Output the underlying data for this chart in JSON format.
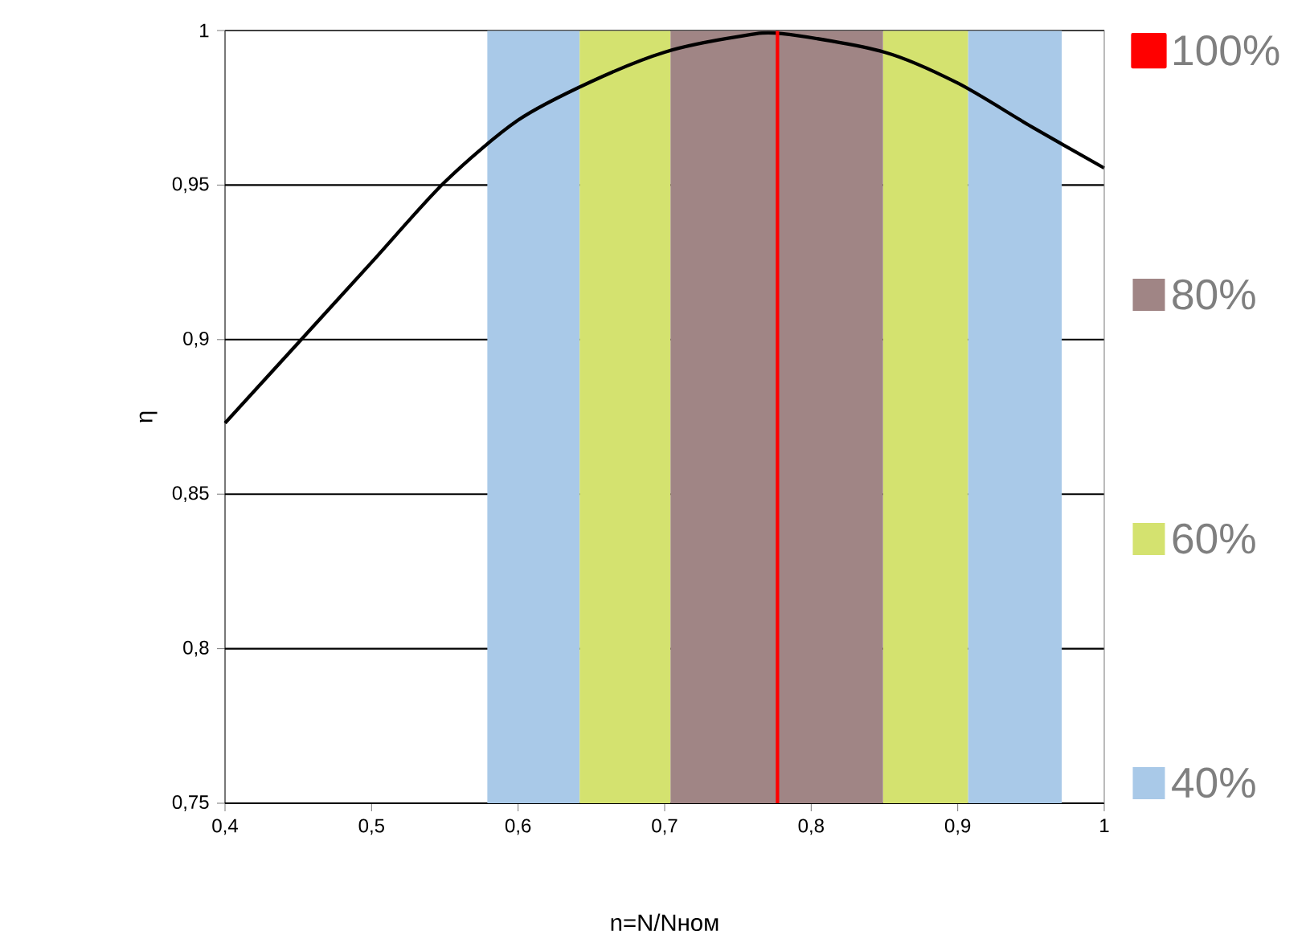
{
  "chart_data": {
    "type": "line",
    "xlabel": "n=N/Nном",
    "ylabel": "η",
    "x": [
      0.4,
      0.452,
      0.5,
      0.55,
      0.6,
      0.65,
      0.7,
      0.75,
      0.78,
      0.85,
      0.9,
      0.95,
      1.0
    ],
    "series": [
      {
        "name": "40%",
        "type": "area",
        "color": "#a9c9e8",
        "x": [
          0.579,
          0.642,
          null,
          0.907,
          0.971
        ],
        "values": [
          1,
          1,
          null,
          1,
          1
        ]
      },
      {
        "name": "60%",
        "type": "area",
        "color": "#d4e26f",
        "x": [
          0.642,
          0.704,
          null,
          0.849,
          0.907
        ],
        "values": [
          1,
          1,
          null,
          1,
          1
        ]
      },
      {
        "name": "80%",
        "type": "area",
        "color": "#a08585",
        "x": [
          0.704,
          0.849
        ],
        "values": [
          1,
          1
        ]
      },
      {
        "color": "#000000",
        "values": [
          0.873,
          0.9,
          0.925,
          0.951,
          0.971,
          0.9835,
          0.993,
          0.998,
          0.999,
          0.993,
          0.983,
          0.969,
          0.9555
        ]
      },
      {
        "name": "100%",
        "color": "#ff0000",
        "x": [
          0.777,
          0.777
        ],
        "values": [
          0.75,
          1
        ]
      }
    ],
    "xlim": [
      0.4,
      1
    ],
    "ylim": [
      0.75,
      1
    ],
    "xticks": [
      {
        "value": 0.4,
        "label": "0,4"
      },
      {
        "value": 0.5,
        "label": "0,5"
      },
      {
        "value": 0.6,
        "label": "0,6"
      },
      {
        "value": 0.7,
        "label": "0,7"
      },
      {
        "value": 0.8,
        "label": "0,8"
      },
      {
        "value": 0.9,
        "label": "0,9"
      },
      {
        "value": 1,
        "label": "1"
      }
    ],
    "yticks": [
      {
        "value": 0.75,
        "label": "0,75"
      },
      {
        "value": 0.8,
        "label": "0,8"
      },
      {
        "value": 0.85,
        "label": "0,85"
      },
      {
        "value": 0.9,
        "label": "0,9"
      },
      {
        "value": 0.95,
        "label": "0,95"
      },
      {
        "value": 1,
        "label": "1"
      }
    ],
    "grid": "y",
    "legend": "right",
    "marker": "none",
    "line_style": "solid"
  }
}
